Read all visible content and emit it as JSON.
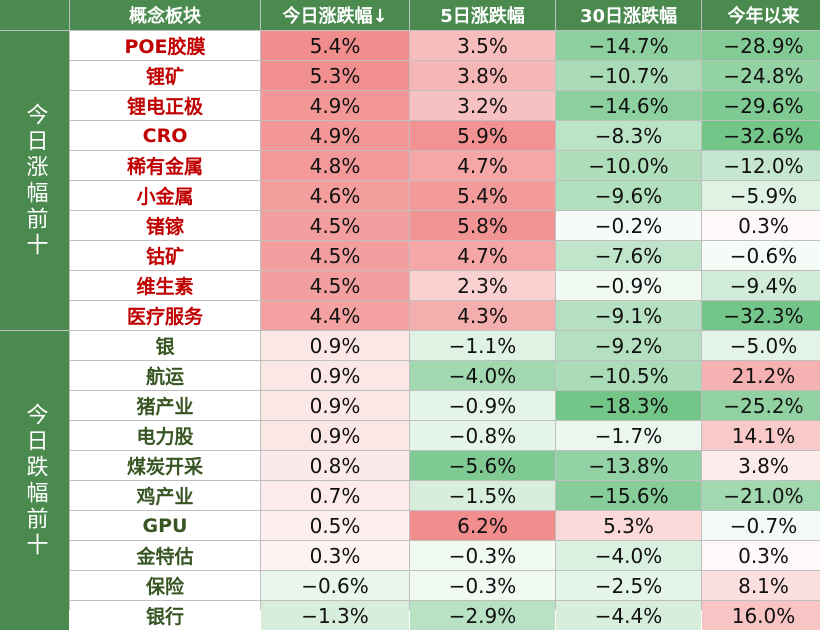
{
  "headers": [
    "概念板块",
    "今日涨跌幅↓",
    "5日涨跌幅",
    "30日涨跌幅",
    "今年以来"
  ],
  "groups": [
    {
      "label": "今日涨幅前十",
      "cls": "up"
    },
    {
      "label": "今日跌幅前十",
      "cls": "down"
    }
  ],
  "rows": [
    {
      "name": "POE胶膜",
      "today": "5.4%",
      "d5": "3.5%",
      "d30": "−14.7%",
      "ytd": "−28.9%",
      "g": 0,
      "n": [
        5.4,
        3.5,
        -14.7,
        -28.9
      ]
    },
    {
      "name": "锂矿",
      "today": "5.3%",
      "d5": "3.8%",
      "d30": "−10.7%",
      "ytd": "−24.8%",
      "g": 0,
      "n": [
        5.3,
        3.8,
        -10.7,
        -24.8
      ]
    },
    {
      "name": "锂电正极",
      "today": "4.9%",
      "d5": "3.2%",
      "d30": "−14.6%",
      "ytd": "−29.6%",
      "g": 0,
      "n": [
        4.9,
        3.2,
        -14.6,
        -29.6
      ]
    },
    {
      "name": "CRO",
      "today": "4.9%",
      "d5": "5.9%",
      "d30": "−8.3%",
      "ytd": "−32.6%",
      "g": 0,
      "n": [
        4.9,
        5.9,
        -8.3,
        -32.6
      ]
    },
    {
      "name": "稀有金属",
      "today": "4.8%",
      "d5": "4.7%",
      "d30": "−10.0%",
      "ytd": "−12.0%",
      "g": 0,
      "n": [
        4.8,
        4.7,
        -10.0,
        -12.0
      ]
    },
    {
      "name": "小金属",
      "today": "4.6%",
      "d5": "5.4%",
      "d30": "−9.6%",
      "ytd": "−5.9%",
      "g": 0,
      "n": [
        4.6,
        5.4,
        -9.6,
        -5.9
      ]
    },
    {
      "name": "锗镓",
      "today": "4.5%",
      "d5": "5.8%",
      "d30": "−0.2%",
      "ytd": "0.3%",
      "g": 0,
      "n": [
        4.5,
        5.8,
        -0.2,
        0.3
      ]
    },
    {
      "name": "钴矿",
      "today": "4.5%",
      "d5": "4.7%",
      "d30": "−7.6%",
      "ytd": "−0.6%",
      "g": 0,
      "n": [
        4.5,
        4.7,
        -7.6,
        -0.6
      ]
    },
    {
      "name": "维生素",
      "today": "4.5%",
      "d5": "2.3%",
      "d30": "−0.9%",
      "ytd": "−9.4%",
      "g": 0,
      "n": [
        4.5,
        2.3,
        -0.9,
        -9.4
      ]
    },
    {
      "name": "医疗服务",
      "today": "4.4%",
      "d5": "4.3%",
      "d30": "−9.1%",
      "ytd": "−32.3%",
      "g": 0,
      "n": [
        4.4,
        4.3,
        -9.1,
        -32.3
      ]
    },
    {
      "name": "银",
      "today": "0.9%",
      "d5": "−1.1%",
      "d30": "−9.2%",
      "ytd": "−5.0%",
      "g": 1,
      "n": [
        0.9,
        -1.1,
        -9.2,
        -5.0
      ]
    },
    {
      "name": "航运",
      "today": "0.9%",
      "d5": "−4.0%",
      "d30": "−10.5%",
      "ytd": "21.2%",
      "g": 1,
      "n": [
        0.9,
        -4.0,
        -10.5,
        21.2
      ]
    },
    {
      "name": "猪产业",
      "today": "0.9%",
      "d5": "−0.9%",
      "d30": "−18.3%",
      "ytd": "−25.2%",
      "g": 1,
      "n": [
        0.9,
        -0.9,
        -18.3,
        -25.2
      ]
    },
    {
      "name": "电力股",
      "today": "0.9%",
      "d5": "−0.8%",
      "d30": "−1.7%",
      "ytd": "14.1%",
      "g": 1,
      "n": [
        0.9,
        -0.8,
        -1.7,
        14.1
      ]
    },
    {
      "name": "煤炭开采",
      "today": "0.8%",
      "d5": "−5.6%",
      "d30": "−13.8%",
      "ytd": "3.8%",
      "g": 1,
      "n": [
        0.8,
        -5.6,
        -13.8,
        3.8
      ]
    },
    {
      "name": "鸡产业",
      "today": "0.7%",
      "d5": "−1.5%",
      "d30": "−15.6%",
      "ytd": "−21.0%",
      "g": 1,
      "n": [
        0.7,
        -1.5,
        -15.6,
        -21.0
      ]
    },
    {
      "name": "GPU",
      "today": "0.5%",
      "d5": "6.2%",
      "d30": "5.3%",
      "ytd": "−0.7%",
      "g": 1,
      "n": [
        0.5,
        6.2,
        5.3,
        -0.7
      ]
    },
    {
      "name": "金特估",
      "today": "0.3%",
      "d5": "−0.3%",
      "d30": "−4.0%",
      "ytd": "0.3%",
      "g": 1,
      "n": [
        0.3,
        -0.3,
        -4.0,
        0.3
      ]
    },
    {
      "name": "保险",
      "today": "−0.6%",
      "d5": "−0.3%",
      "d30": "−2.5%",
      "ytd": "8.1%",
      "g": 1,
      "n": [
        -0.6,
        -0.3,
        -2.5,
        8.1
      ]
    },
    {
      "name": "银行",
      "today": "−1.3%",
      "d5": "−2.9%",
      "d30": "−4.4%",
      "ytd": "16.0%",
      "g": 1,
      "n": [
        -1.3,
        -2.9,
        -4.4,
        16.0
      ]
    }
  ],
  "colors": {
    "header_bg": "#4a8a4e",
    "pos": "#f08080",
    "neg": "#63be7b",
    "up_text": "#c00000",
    "down_text": "#375623"
  }
}
